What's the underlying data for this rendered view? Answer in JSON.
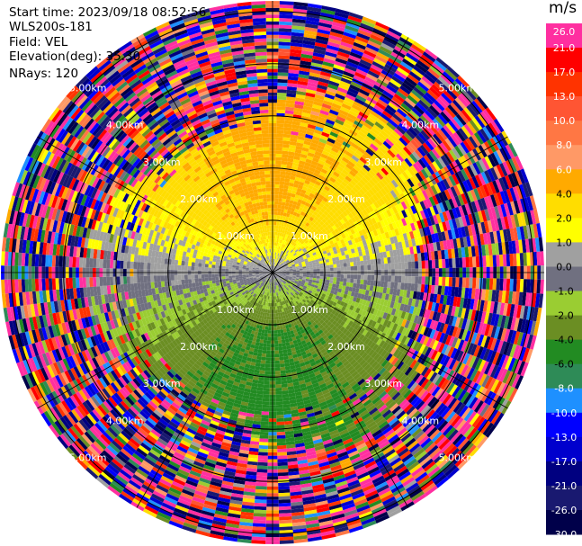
{
  "header": {
    "start_time": "Start time: 2023/09/18 08:52:56",
    "instrument": "WLS200s-181",
    "field": "Field: VEL",
    "elevation": "Elevation(deg): 35.30",
    "nrays": "NRays: 120"
  },
  "colorbar": {
    "unit": "m/s",
    "ticks": [
      "26.0",
      "21.0",
      "17.0",
      "13.0",
      "10.0",
      "8.0",
      "6.0",
      "4.0",
      "2.0",
      "1.0",
      "0.0",
      "-1.0",
      "-2.0",
      "-4.0",
      "-6.0",
      "-8.0",
      "-10.0",
      "-13.0",
      "-17.0",
      "-21.0",
      "-26.0",
      "-30.0"
    ],
    "colors": [
      "#ff2fa0",
      "#ff0000",
      "#ff3300",
      "#ff5533",
      "#ff7744",
      "#ff9966",
      "#ffaa00",
      "#ffdd00",
      "#ffff00",
      "#a0a0a0",
      "#707080",
      "#9acd32",
      "#6b8e23",
      "#228b22",
      "#2e8b57",
      "#1e90ff",
      "#0000ff",
      "#0000cd",
      "#000080",
      "#191970",
      "#00004a"
    ]
  },
  "chart_data": {
    "type": "heatmap",
    "projection": "polar PPI",
    "field": "VEL",
    "units": "m/s",
    "nrays": 120,
    "range_rings_km": [
      1.0,
      2.0,
      3.0,
      4.0,
      5.0
    ],
    "ring_label_text": [
      "1.00km",
      "2.00km",
      "3.00km",
      "4.00km",
      "5.00km"
    ],
    "spokes_deg": [
      0,
      30,
      60,
      90,
      120,
      150,
      180,
      210,
      240,
      270,
      300,
      330
    ],
    "max_range_km": 5.2,
    "vmin": -30.0,
    "vmax": 30.0
  }
}
